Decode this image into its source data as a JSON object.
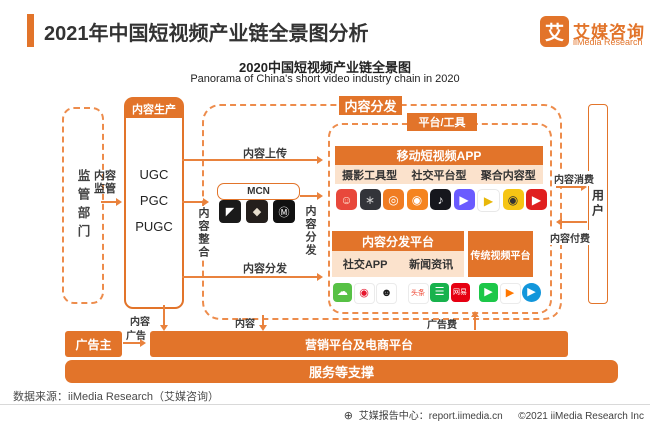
{
  "header": {
    "title": "2021年中国短视频产业链全景图分析",
    "logo": {
      "icon_char": "艾",
      "name_cn": "艾媒咨询",
      "name_en": "iiMedia Research"
    }
  },
  "subtitle": {
    "cn": "2020中国短视频产业链全景图",
    "en": "Panorama of China's short video industry chain in 2020"
  },
  "diagram": {
    "regulator_label": "监管部门",
    "supervision_label": "内容监管",
    "production": {
      "header": "内容生产",
      "items": [
        "UGC",
        "PGC",
        "PUGC"
      ]
    },
    "upload_label": "内容上传",
    "integration_label": "内容整合",
    "mcn_label": "MCN",
    "distribution_title": "内容分发",
    "distribution_vertical_label": "内容分发",
    "distribution_bottom_label": "内容分发",
    "platform_tools_label": "平台/工具",
    "short_video_app": {
      "header": "移动短视频APP",
      "categories": [
        "摄影工具型",
        "社交平台型",
        "聚合内容型"
      ]
    },
    "distribution_platform": {
      "header": "内容分发平台",
      "categories": [
        "社交APP",
        "新闻资讯"
      ]
    },
    "traditional_video_label": "传统视频平台",
    "consume_label": "内容消费",
    "pay_label": "内容付费",
    "user_label": "用户",
    "content_label_1": "内容",
    "content_label_2": "内容",
    "ad_fee_label": "广告费",
    "advertiser_label": "广告主",
    "ad_label": "广告",
    "marketing_bar": "营销平台及电商平台",
    "support_bar": "服务等支撑"
  },
  "icons": {
    "mcn_logos": [
      {
        "name": "mcn-logo-1",
        "bg": "#1A1A1A",
        "fg": "#FFFFFF",
        "glyph": "◤"
      },
      {
        "name": "mcn-logo-2",
        "bg": "#241F1C",
        "fg": "#E8DFCE",
        "glyph": "◆"
      },
      {
        "name": "mcn-logo-3",
        "bg": "#111111",
        "fg": "#FFFFFF",
        "glyph": "Ⓜ"
      }
    ],
    "row1": [
      {
        "name": "app-icon-xiaokaxiu",
        "bg": "#E8483B",
        "fg": "#FFE9D6",
        "glyph": "☺"
      },
      {
        "name": "app-icon-dark-camera",
        "bg": "#33343A",
        "fg": "#CCCCCC",
        "glyph": "∗"
      },
      {
        "name": "app-icon-vivavideo",
        "bg": "#F07C22",
        "fg": "#FFFFFF",
        "glyph": "◎"
      },
      {
        "name": "app-icon-kuaishou",
        "bg": "#F5841F",
        "fg": "#FFFFFF",
        "glyph": "◉"
      },
      {
        "name": "app-icon-douyin",
        "bg": "#16171D",
        "fg": "#FFFFFF",
        "glyph": "♪"
      },
      {
        "name": "app-icon-weishi",
        "bg": "#6A5BFF",
        "fg": "#FFFFFF",
        "glyph": "▶"
      },
      {
        "name": "app-icon-triangle-play",
        "bg": "#FFFFFF",
        "fg": "#E8B70A",
        "glyph": "▶",
        "border": "1px solid #E8E8E8"
      },
      {
        "name": "app-icon-yellow-camera",
        "bg": "#F6C514",
        "fg": "#333333",
        "glyph": "◉"
      },
      {
        "name": "app-icon-red-video",
        "bg": "#E01F1F",
        "fg": "#FFFFFF",
        "glyph": "▶"
      }
    ],
    "row2": [
      {
        "name": "app-icon-wechat",
        "bg": "#57C145",
        "fg": "#FFFFFF",
        "glyph": "☁"
      },
      {
        "name": "app-icon-weibo",
        "bg": "#FFFFFF",
        "fg": "#E6162D",
        "glyph": "◉",
        "border": "1px solid #EBEBEB"
      },
      {
        "name": "app-icon-qq",
        "bg": "#FFFFFF",
        "fg": "#1A1A1A",
        "glyph": "☻",
        "border": "1px solid #EBEBEB"
      },
      {
        "name": "app-icon-toutiao",
        "bg": "#FFFFFF",
        "fg": "#ED3B26",
        "glyph": "头条",
        "fs": 7,
        "border": "1px solid #EBEBEB"
      },
      {
        "name": "app-icon-green-news",
        "bg": "#18B24D",
        "fg": "#FFFFFF",
        "glyph": "☰"
      },
      {
        "name": "app-icon-netease-news",
        "bg": "#E60012",
        "fg": "#FFFFFF",
        "glyph": "网易",
        "fs": 7
      },
      {
        "name": "app-icon-iqiyi",
        "bg": "#1CC749",
        "fg": "#FFFFFF",
        "glyph": "▶"
      },
      {
        "name": "app-icon-tencent-video",
        "bg": "#FFFFFF",
        "fg": "#FF7700",
        "glyph": "▶",
        "border": "1px solid #EBEBEB"
      },
      {
        "name": "app-icon-youku",
        "bg": "#1296DB",
        "fg": "#FFFFFF",
        "glyph": "▶",
        "round": true
      }
    ]
  },
  "footer": {
    "source": "数据来源：iiMedia Research（艾媒咨询）",
    "report_center": "艾媒报告中心：report.iimedia.cn",
    "copyright": "©2021  iiMedia Research Inc",
    "globe_icon": "⊕"
  },
  "colors": {
    "primary_orange": "#E2742A",
    "dashed_orange": "#ED8C4C",
    "arrow_orange": "#E9823D",
    "light_peach": "#FBE2CC"
  }
}
